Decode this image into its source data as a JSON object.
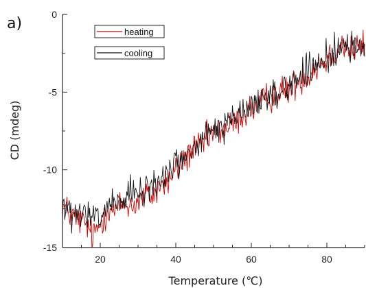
{
  "chart_data": {
    "type": "line",
    "panel_label": "a)",
    "xlabel": "Temperature (℃)",
    "ylabel": "CD (mdeg)",
    "xlim": [
      10,
      90
    ],
    "ylim": [
      -15,
      0
    ],
    "xticks": [
      20,
      40,
      60,
      80
    ],
    "yticks": [
      0,
      -5,
      -10,
      -15
    ],
    "grid": false,
    "legend_position": "top-left",
    "series": [
      {
        "name": "heating",
        "color": "#d40000",
        "x": [
          10,
          12,
          14,
          16,
          18,
          20,
          22,
          24,
          26,
          28,
          30,
          32,
          34,
          36,
          38,
          40,
          42,
          44,
          46,
          48,
          50,
          52,
          54,
          56,
          58,
          60,
          62,
          64,
          66,
          68,
          70,
          72,
          74,
          76,
          78,
          80,
          82,
          84,
          86,
          88,
          90
        ],
        "y": [
          -12.3,
          -12.8,
          -13.2,
          -13.4,
          -14.3,
          -13.5,
          -12.5,
          -12.6,
          -12.2,
          -12.3,
          -12.1,
          -11.7,
          -11.6,
          -11.0,
          -10.8,
          -10.0,
          -9.5,
          -8.8,
          -8.6,
          -8.1,
          -7.6,
          -7.4,
          -7.3,
          -6.9,
          -6.4,
          -6.1,
          -5.9,
          -5.4,
          -5.2,
          -5.0,
          -4.8,
          -4.4,
          -4.0,
          -3.7,
          -3.2,
          -2.9,
          -2.4,
          -1.9,
          -2.3,
          -2.2,
          -2.0
        ]
      },
      {
        "name": "cooling",
        "color": "#111111",
        "x": [
          10,
          12,
          14,
          16,
          18,
          20,
          22,
          24,
          26,
          28,
          30,
          32,
          34,
          36,
          38,
          40,
          42,
          44,
          46,
          48,
          50,
          52,
          54,
          56,
          58,
          60,
          62,
          64,
          66,
          68,
          70,
          72,
          74,
          76,
          78,
          80,
          82,
          84,
          86,
          88,
          90
        ],
        "y": [
          -12.2,
          -12.9,
          -13.1,
          -12.9,
          -13.1,
          -13.2,
          -12.2,
          -12.4,
          -12.1,
          -11.5,
          -11.6,
          -11.4,
          -10.9,
          -10.7,
          -10.1,
          -9.5,
          -9.4,
          -8.8,
          -8.4,
          -7.9,
          -7.5,
          -7.2,
          -7.1,
          -6.6,
          -6.2,
          -5.9,
          -5.6,
          -5.3,
          -5.2,
          -4.8,
          -4.6,
          -4.1,
          -3.8,
          -3.6,
          -3.4,
          -2.7,
          -2.3,
          -2.2,
          -2.2,
          -2.0,
          -2.1
        ]
      }
    ]
  }
}
